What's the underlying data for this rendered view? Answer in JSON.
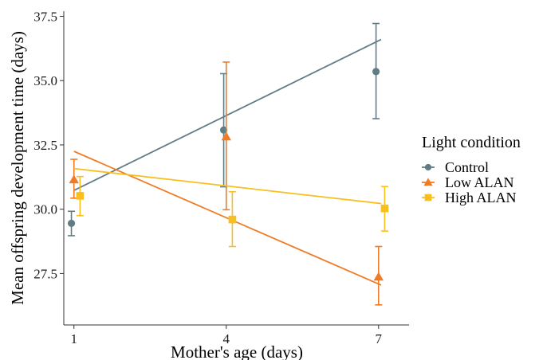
{
  "chart_data": {
    "type": "line",
    "xlabel": "Mother's age (days)",
    "ylabel": "Mean offspring development time (days)",
    "x_ticks": [
      1,
      4,
      7
    ],
    "y_ticks": [
      27.5,
      30.0,
      32.5,
      35.0,
      37.5
    ],
    "y_tick_labels": [
      "27.5",
      "30.0",
      "32.5",
      "35.0",
      "37.5"
    ],
    "xlim": [
      0.8,
      7.6
    ],
    "ylim": [
      25.5,
      37.7
    ],
    "grid": false,
    "legend": {
      "title": "Light condition",
      "position": "right"
    },
    "series": [
      {
        "name": "Control",
        "color": "#607d87",
        "marker": "circle",
        "x": [
          1,
          4,
          7
        ],
        "mean": [
          29.45,
          33.08,
          35.35
        ],
        "lower": [
          28.97,
          30.87,
          33.52
        ],
        "upper": [
          29.92,
          35.27,
          37.22
        ],
        "trend": [
          30.73,
          36.6
        ]
      },
      {
        "name": "Low ALAN",
        "color": "#f07b26",
        "marker": "triangle",
        "x": [
          1,
          4,
          7
        ],
        "mean": [
          31.15,
          32.82,
          27.37
        ],
        "lower": [
          30.43,
          29.98,
          26.28
        ],
        "upper": [
          31.94,
          35.72,
          28.55
        ],
        "trend": [
          32.25,
          27.05
        ]
      },
      {
        "name": "High ALAN",
        "color": "#f8bf1e",
        "marker": "square",
        "x": [
          1,
          4,
          7
        ],
        "mean": [
          30.52,
          29.6,
          30.03
        ],
        "lower": [
          29.75,
          28.55,
          29.15
        ],
        "upper": [
          31.27,
          30.68,
          30.88
        ],
        "trend": [
          31.58,
          30.22
        ]
      }
    ]
  }
}
